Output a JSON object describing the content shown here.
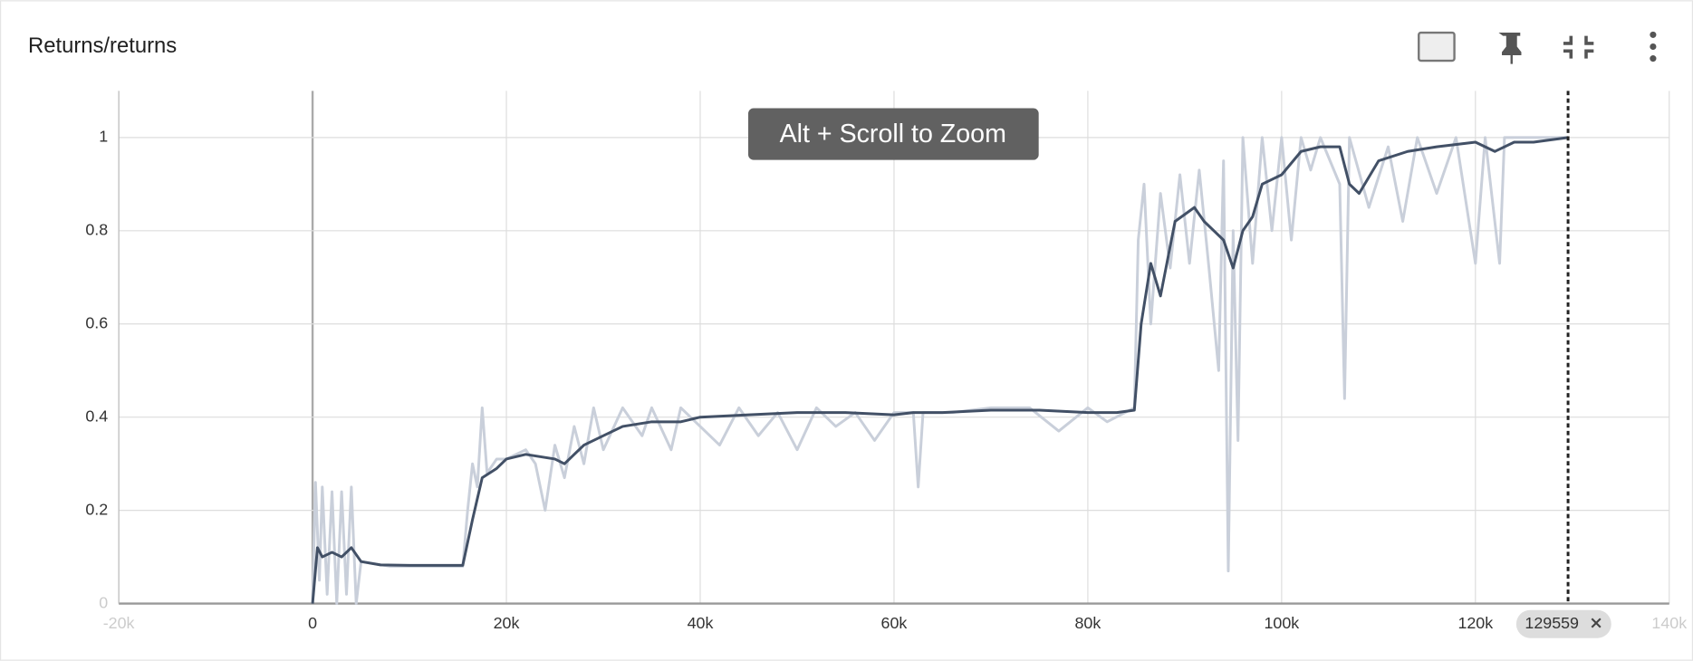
{
  "title": "Returns/returns",
  "tooltip": "Alt + Scroll to Zoom",
  "cursor_step": 129559,
  "chart_data": {
    "type": "line",
    "xlim": [
      -20000,
      140000
    ],
    "xticks": [
      {
        "value": -20000,
        "label": "-20k"
      },
      0,
      {
        "value": 20000,
        "label": "20k"
      },
      {
        "value": 40000,
        "label": "40k"
      },
      {
        "value": 60000,
        "label": "60k"
      },
      {
        "value": 80000,
        "label": "80k"
      },
      {
        "value": 100000,
        "label": "100k"
      },
      {
        "value": 120000,
        "label": "120k"
      },
      {
        "value": 140000,
        "label": "140k"
      }
    ],
    "ylim": [
      0,
      1.1
    ],
    "yticks": [
      0,
      0.2,
      0.4,
      0.6,
      0.8,
      1
    ],
    "grid": true,
    "series": [
      {
        "color": "#c9cfda",
        "x": [
          0,
          300,
          700,
          1000,
          1500,
          2000,
          2500,
          3000,
          3500,
          4000,
          4500,
          5000,
          8000,
          15500,
          16000,
          16500,
          17000,
          17500,
          18000,
          19000,
          20000,
          22000,
          23000,
          24000,
          25000,
          26000,
          27000,
          28000,
          29000,
          30000,
          32000,
          34000,
          35000,
          37000,
          38000,
          40000,
          42000,
          44000,
          46000,
          48000,
          50000,
          52000,
          54000,
          56000,
          58000,
          60000,
          62000,
          62500,
          63000,
          66000,
          70000,
          74000,
          77000,
          80000,
          82000,
          84800,
          85200,
          85800,
          86500,
          87500,
          88500,
          89500,
          90500,
          91500,
          92500,
          93500,
          94000,
          94500,
          95000,
          95500,
          96000,
          97000,
          98000,
          99000,
          100000,
          101000,
          102000,
          103000,
          104000,
          106000,
          106500,
          107000,
          109000,
          111000,
          112500,
          114000,
          116000,
          118000,
          120000,
          121000,
          122500,
          123000,
          126000,
          129559
        ],
        "values": [
          0,
          0.26,
          0.05,
          0.25,
          0.02,
          0.24,
          0,
          0.24,
          0.02,
          0.25,
          0,
          0.09,
          0.08,
          0.08,
          0.2,
          0.3,
          0.25,
          0.42,
          0.28,
          0.31,
          0.31,
          0.33,
          0.3,
          0.2,
          0.34,
          0.27,
          0.38,
          0.3,
          0.42,
          0.33,
          0.42,
          0.36,
          0.42,
          0.33,
          0.42,
          0.38,
          0.34,
          0.42,
          0.36,
          0.41,
          0.33,
          0.42,
          0.38,
          0.41,
          0.35,
          0.41,
          0.41,
          0.25,
          0.41,
          0.41,
          0.42,
          0.42,
          0.37,
          0.42,
          0.39,
          0.42,
          0.78,
          0.9,
          0.6,
          0.88,
          0.72,
          0.92,
          0.73,
          0.93,
          0.72,
          0.5,
          0.95,
          0.07,
          0.8,
          0.35,
          1,
          0.73,
          1,
          0.8,
          1,
          0.78,
          1,
          0.93,
          1,
          0.9,
          0.44,
          1,
          0.85,
          0.98,
          0.82,
          1,
          0.88,
          1,
          0.73,
          1,
          0.73,
          1,
          1,
          1
        ]
      },
      {
        "color": "#425066",
        "x": [
          0,
          500,
          1000,
          2000,
          3000,
          4000,
          5000,
          7000,
          10000,
          15500,
          16500,
          17500,
          19000,
          20000,
          22000,
          25000,
          26000,
          28000,
          30000,
          32000,
          35000,
          38000,
          40000,
          45000,
          50000,
          55000,
          60000,
          62000,
          65000,
          70000,
          75000,
          80000,
          83000,
          84800,
          85500,
          86500,
          87500,
          89000,
          91000,
          92000,
          94000,
          95000,
          96000,
          97000,
          98000,
          100000,
          102000,
          104000,
          106000,
          107000,
          108000,
          110000,
          113000,
          116000,
          120000,
          122000,
          124000,
          126000,
          129559
        ],
        "values": [
          0,
          0.12,
          0.1,
          0.11,
          0.1,
          0.12,
          0.09,
          0.083,
          0.082,
          0.082,
          0.18,
          0.27,
          0.29,
          0.31,
          0.32,
          0.31,
          0.3,
          0.34,
          0.36,
          0.38,
          0.39,
          0.39,
          0.4,
          0.405,
          0.41,
          0.41,
          0.405,
          0.41,
          0.41,
          0.415,
          0.415,
          0.41,
          0.41,
          0.415,
          0.6,
          0.73,
          0.66,
          0.82,
          0.85,
          0.82,
          0.78,
          0.72,
          0.8,
          0.83,
          0.9,
          0.92,
          0.97,
          0.98,
          0.98,
          0.9,
          0.88,
          0.95,
          0.97,
          0.98,
          0.99,
          0.97,
          0.99,
          0.99,
          1
        ]
      }
    ]
  }
}
